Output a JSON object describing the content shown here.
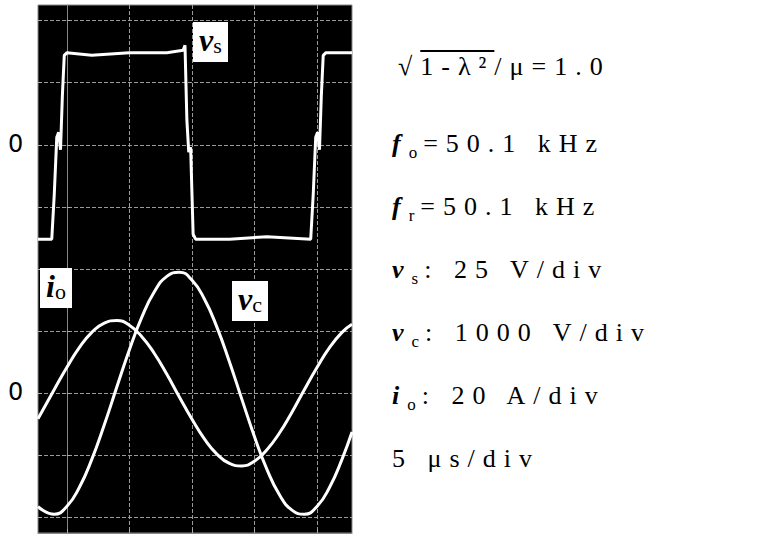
{
  "chart_data": {
    "type": "line",
    "grid": true,
    "tick_labels": false,
    "xlim": [
      -2.3,
      22.8
    ],
    "xticks": [
      0,
      5,
      10,
      15,
      20
    ],
    "ylim": [
      -45,
      125
    ],
    "yticks": [
      -40,
      -20,
      0,
      20,
      40,
      60,
      80,
      100,
      120
    ],
    "y2lim": [
      -2250,
      6250
    ],
    "y2ticks": [
      -2000,
      -1000,
      0,
      1000,
      2000,
      3000,
      4000,
      5000,
      6000
    ],
    "y3lim": [
      -156.25,
      56.25
    ],
    "y3ticks": [
      -150,
      -125,
      -100,
      -75,
      -50,
      -25,
      0,
      25,
      50
    ],
    "zero_labels": [
      {
        "axis": "y3",
        "value": 0,
        "label": "0"
      },
      {
        "axis": "y",
        "value": 0,
        "label": "0"
      }
    ],
    "series": [
      {
        "name": "vs",
        "axis": "y3",
        "color": "#ffffff",
        "line_style": "solid",
        "x": [
          -2.3,
          -1.2,
          -1.0,
          -0.8,
          -0.65,
          -0.5,
          -0.35,
          -0.2,
          0,
          2,
          5,
          8,
          9.3,
          9.45,
          9.6,
          9.75,
          9.9,
          10.1,
          10.3,
          13,
          16,
          19.5,
          19.7,
          19.9,
          20.05,
          20.2,
          20.35,
          20.5,
          20.7,
          22.8
        ],
        "values": [
          -38,
          -38,
          -20,
          3,
          5,
          -2,
          20,
          36,
          37,
          36,
          37,
          37,
          38,
          40,
          10,
          -3,
          -1,
          -36,
          -38,
          -38,
          -37,
          -38,
          -20,
          3,
          5,
          -2,
          20,
          36,
          37,
          37
        ]
      },
      {
        "name": "io",
        "axis": "y",
        "color": "#ffffff",
        "line_style": "smooth",
        "x": [
          -2.3,
          -1,
          0,
          1,
          2,
          3,
          4,
          5,
          6,
          7,
          8,
          9,
          10,
          11,
          12,
          13,
          14,
          15,
          16,
          17,
          18,
          19,
          20,
          21,
          22,
          22.8
        ],
        "values": [
          -8.2,
          1.2,
          8.3,
          14.7,
          19.6,
          22.6,
          23.4,
          21.9,
          18.2,
          12.8,
          6.1,
          -1.2,
          -8.3,
          -14.7,
          -19.6,
          -22.6,
          -23.4,
          -21.9,
          -18.2,
          -12.8,
          -6.1,
          1.2,
          8.3,
          14.7,
          19.6,
          22.2
        ]
      },
      {
        "name": "vc",
        "axis": "y2",
        "color": "#ffffff",
        "line_style": "smooth",
        "x": [
          -2.3,
          -1,
          0,
          1,
          2,
          3,
          4,
          5,
          6,
          7,
          8,
          9,
          10,
          11,
          12,
          13,
          14,
          15,
          16,
          17,
          18,
          19,
          20,
          21,
          22,
          22.8
        ],
        "values": [
          -1827,
          -1948,
          -1822,
          -1517,
          -1065,
          -508,
          99,
          696,
          1225,
          1634,
          1882,
          1948,
          1822,
          1517,
          1065,
          508,
          -99,
          -696,
          -1225,
          -1634,
          -1882,
          -1948,
          -1822,
          -1517,
          -1065,
          -625
        ]
      }
    ],
    "annotations": [
      {
        "radical": "√",
        "radicand": "1-λ²",
        "text": "/μ=1.0"
      },
      {
        "var": "fo",
        "text": "=50.1 kHz"
      },
      {
        "var": "fr",
        "text": "=50.1 kHz"
      },
      {
        "var": "vs",
        "text": ": 25 V/div"
      },
      {
        "var": "vc",
        "text": ": 1000 V/div"
      },
      {
        "var": "io",
        "text": ": 20 A/div"
      },
      {
        "text": "5 μs/div"
      }
    ]
  }
}
